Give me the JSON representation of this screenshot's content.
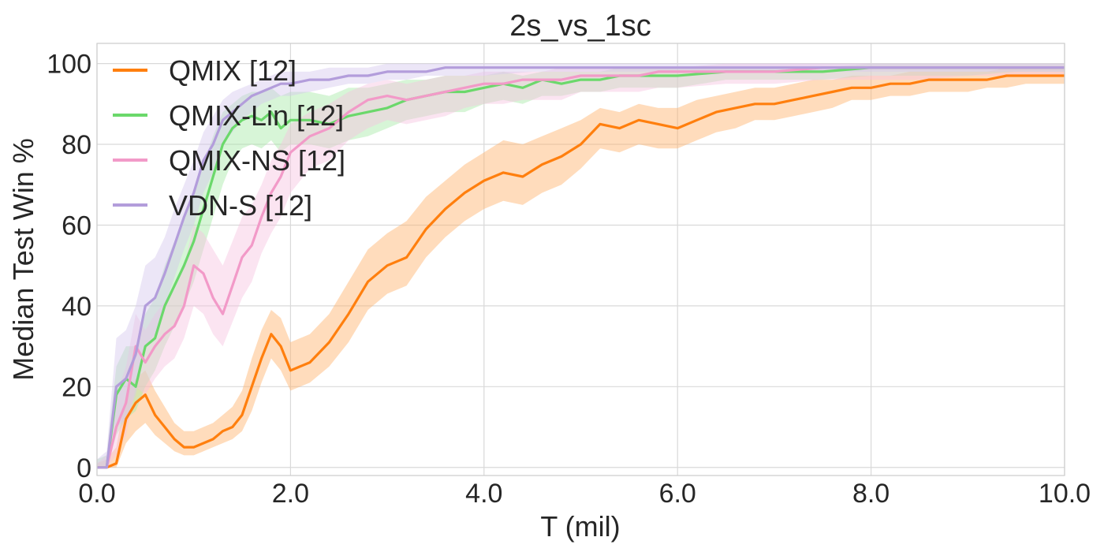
{
  "chart_data": {
    "type": "line",
    "title": "2s_vs_1sc",
    "xlabel": "T (mil)",
    "ylabel": "Median Test Win %",
    "xlim": [
      0,
      10
    ],
    "ylim": [
      -2,
      105
    ],
    "xticks": [
      0,
      2,
      4,
      6,
      8,
      10
    ],
    "xtick_labels": [
      "0.0",
      "2.0",
      "4.0",
      "6.0",
      "8.0",
      "10.0"
    ],
    "yticks": [
      0,
      20,
      40,
      60,
      80,
      100
    ],
    "ytick_labels": [
      "0",
      "20",
      "40",
      "60",
      "80",
      "100"
    ],
    "grid": true,
    "legend_position": "top-left",
    "series": [
      {
        "name": "QMIX [12]",
        "color": "#ff7f0e",
        "band_color": "#ffb26b",
        "x": [
          0,
          0.1,
          0.2,
          0.3,
          0.4,
          0.5,
          0.6,
          0.7,
          0.8,
          0.9,
          1.0,
          1.1,
          1.2,
          1.3,
          1.4,
          1.5,
          1.6,
          1.7,
          1.8,
          1.9,
          2.0,
          2.2,
          2.4,
          2.6,
          2.8,
          3.0,
          3.2,
          3.4,
          3.6,
          3.8,
          4.0,
          4.2,
          4.4,
          4.6,
          4.8,
          5.0,
          5.2,
          5.4,
          5.6,
          5.8,
          6.0,
          6.2,
          6.4,
          6.6,
          6.8,
          7.0,
          7.2,
          7.4,
          7.6,
          7.8,
          8.0,
          8.2,
          8.4,
          8.6,
          8.8,
          9.0,
          9.2,
          9.4,
          9.6,
          9.8,
          10.0
        ],
        "y": [
          0,
          0,
          1,
          12,
          16,
          18,
          13,
          10,
          7,
          5,
          5,
          6,
          7,
          9,
          10,
          13,
          20,
          27,
          33,
          30,
          24,
          26,
          31,
          38,
          46,
          50,
          52,
          59,
          64,
          68,
          71,
          73,
          72,
          75,
          77,
          80,
          85,
          84,
          86,
          85,
          84,
          86,
          88,
          89,
          90,
          90,
          91,
          92,
          93,
          94,
          94,
          95,
          95,
          96,
          96,
          96,
          96,
          97,
          97,
          97,
          97
        ],
        "lower": [
          0,
          0,
          0,
          6,
          9,
          11,
          8,
          6,
          4,
          3,
          3,
          4,
          5,
          6,
          7,
          9,
          14,
          21,
          27,
          24,
          19,
          21,
          25,
          31,
          39,
          43,
          45,
          52,
          57,
          61,
          64,
          66,
          65,
          68,
          70,
          74,
          79,
          78,
          80,
          79,
          79,
          81,
          83,
          84,
          86,
          86,
          87,
          88,
          89,
          91,
          91,
          92,
          92,
          93,
          93,
          93,
          94,
          94,
          95,
          95,
          95
        ],
        "upper": [
          1,
          2,
          5,
          18,
          22,
          24,
          19,
          15,
          11,
          9,
          9,
          10,
          11,
          13,
          15,
          19,
          27,
          34,
          39,
          37,
          31,
          33,
          38,
          46,
          54,
          58,
          61,
          67,
          71,
          75,
          78,
          81,
          80,
          82,
          84,
          86,
          89,
          88,
          90,
          89,
          89,
          91,
          92,
          93,
          94,
          94,
          95,
          96,
          96,
          97,
          97,
          97,
          98,
          98,
          98,
          98,
          98,
          99,
          99,
          99,
          99
        ]
      },
      {
        "name": "QMIX-Lin [12]",
        "color": "#6bd86b",
        "band_color": "#a6e8a6",
        "x": [
          0,
          0.1,
          0.2,
          0.3,
          0.4,
          0.5,
          0.6,
          0.7,
          0.8,
          0.9,
          1.0,
          1.1,
          1.2,
          1.3,
          1.4,
          1.5,
          1.6,
          1.7,
          1.8,
          1.9,
          2.0,
          2.2,
          2.4,
          2.6,
          2.8,
          3.0,
          3.2,
          3.4,
          3.6,
          3.8,
          4.0,
          4.2,
          4.4,
          4.6,
          4.8,
          5.0,
          5.2,
          5.4,
          5.6,
          5.8,
          6.0,
          6.5,
          7.0,
          7.5,
          8.0,
          8.5,
          9.0,
          9.5,
          10.0
        ],
        "y": [
          0,
          0,
          18,
          22,
          20,
          30,
          32,
          40,
          45,
          50,
          56,
          64,
          72,
          80,
          84,
          86,
          87,
          86,
          88,
          84,
          86,
          86,
          85,
          87,
          88,
          89,
          91,
          92,
          93,
          93,
          94,
          95,
          94,
          96,
          95,
          96,
          96,
          97,
          97,
          97,
          97,
          98,
          98,
          98,
          99,
          99,
          99,
          99,
          99
        ],
        "lower": [
          0,
          0,
          8,
          12,
          14,
          20,
          24,
          30,
          35,
          40,
          46,
          54,
          62,
          70,
          76,
          79,
          80,
          79,
          81,
          78,
          80,
          80,
          79,
          81,
          82,
          84,
          86,
          87,
          88,
          88,
          90,
          91,
          90,
          92,
          92,
          93,
          93,
          94,
          94,
          94,
          94,
          96,
          96,
          96,
          97,
          97,
          97,
          98,
          98
        ],
        "upper": [
          2,
          3,
          25,
          30,
          30,
          38,
          42,
          50,
          56,
          62,
          68,
          75,
          82,
          88,
          90,
          92,
          93,
          93,
          94,
          92,
          93,
          93,
          92,
          94,
          94,
          95,
          96,
          96,
          97,
          97,
          97,
          98,
          97,
          98,
          98,
          98,
          98,
          99,
          99,
          99,
          99,
          99,
          99,
          99,
          100,
          100,
          100,
          100,
          100
        ]
      },
      {
        "name": "QMIX-NS [12]",
        "color": "#f29ac8",
        "band_color": "#f7c4df",
        "x": [
          0,
          0.1,
          0.2,
          0.3,
          0.4,
          0.5,
          0.6,
          0.7,
          0.8,
          0.9,
          1.0,
          1.1,
          1.2,
          1.3,
          1.4,
          1.5,
          1.6,
          1.7,
          1.8,
          1.9,
          2.0,
          2.2,
          2.4,
          2.6,
          2.8,
          3.0,
          3.2,
          3.4,
          3.6,
          3.8,
          4.0,
          4.2,
          4.4,
          4.6,
          4.8,
          5.0,
          5.2,
          5.4,
          5.6,
          5.8,
          6.0,
          6.5,
          7.0,
          7.5,
          8.0,
          8.5,
          9.0,
          9.5,
          10.0
        ],
        "y": [
          0,
          0,
          10,
          16,
          30,
          26,
          30,
          33,
          35,
          40,
          50,
          48,
          42,
          38,
          45,
          52,
          55,
          62,
          68,
          72,
          78,
          82,
          84,
          88,
          91,
          92,
          91,
          92,
          93,
          94,
          95,
          95,
          96,
          96,
          96,
          97,
          97,
          97,
          97,
          98,
          98,
          98,
          98,
          99,
          99,
          99,
          99,
          99,
          99
        ],
        "lower": [
          0,
          0,
          3,
          8,
          20,
          18,
          22,
          25,
          27,
          32,
          40,
          38,
          33,
          30,
          36,
          42,
          46,
          53,
          58,
          62,
          68,
          74,
          76,
          81,
          84,
          86,
          85,
          86,
          87,
          89,
          90,
          90,
          91,
          91,
          91,
          93,
          93,
          93,
          93,
          94,
          94,
          95,
          95,
          96,
          96,
          96,
          97,
          97,
          97
        ],
        "upper": [
          1,
          3,
          18,
          25,
          38,
          34,
          38,
          41,
          44,
          50,
          60,
          58,
          54,
          50,
          56,
          62,
          65,
          70,
          76,
          80,
          85,
          88,
          90,
          93,
          95,
          96,
          95,
          96,
          97,
          97,
          98,
          98,
          98,
          98,
          99,
          99,
          99,
          99,
          99,
          99,
          99,
          100,
          100,
          100,
          100,
          100,
          100,
          100,
          100
        ]
      },
      {
        "name": "VDN-S [12]",
        "color": "#b39ddb",
        "band_color": "#d4c7ee",
        "x": [
          0,
          0.1,
          0.2,
          0.3,
          0.4,
          0.5,
          0.6,
          0.7,
          0.8,
          0.9,
          1.0,
          1.1,
          1.2,
          1.3,
          1.4,
          1.5,
          1.6,
          1.7,
          1.8,
          1.9,
          2.0,
          2.2,
          2.4,
          2.6,
          2.8,
          3.0,
          3.2,
          3.4,
          3.6,
          3.8,
          4.0,
          4.5,
          5.0,
          5.5,
          6.0,
          6.5,
          7.0,
          7.5,
          8.0,
          8.5,
          9.0,
          9.5,
          10.0
        ],
        "y": [
          0,
          0,
          20,
          22,
          28,
          40,
          42,
          48,
          55,
          62,
          68,
          76,
          80,
          86,
          88,
          90,
          92,
          93,
          94,
          95,
          95,
          96,
          96,
          97,
          97,
          98,
          98,
          98,
          99,
          99,
          99,
          99,
          99,
          99,
          99,
          99,
          99,
          99,
          99,
          99,
          99,
          99,
          99
        ],
        "lower": [
          0,
          0,
          10,
          12,
          18,
          30,
          33,
          40,
          47,
          54,
          60,
          68,
          73,
          80,
          83,
          86,
          88,
          90,
          91,
          92,
          92,
          93,
          94,
          95,
          95,
          96,
          96,
          97,
          97,
          97,
          97,
          98,
          98,
          98,
          98,
          98,
          98,
          98,
          98,
          98,
          98,
          98,
          98
        ],
        "upper": [
          2,
          4,
          32,
          34,
          40,
          50,
          52,
          57,
          64,
          70,
          76,
          83,
          87,
          91,
          93,
          94,
          95,
          96,
          97,
          98,
          98,
          98,
          99,
          99,
          99,
          100,
          100,
          100,
          100,
          100,
          100,
          100,
          100,
          100,
          100,
          100,
          100,
          100,
          100,
          100,
          100,
          100,
          100
        ]
      }
    ]
  }
}
